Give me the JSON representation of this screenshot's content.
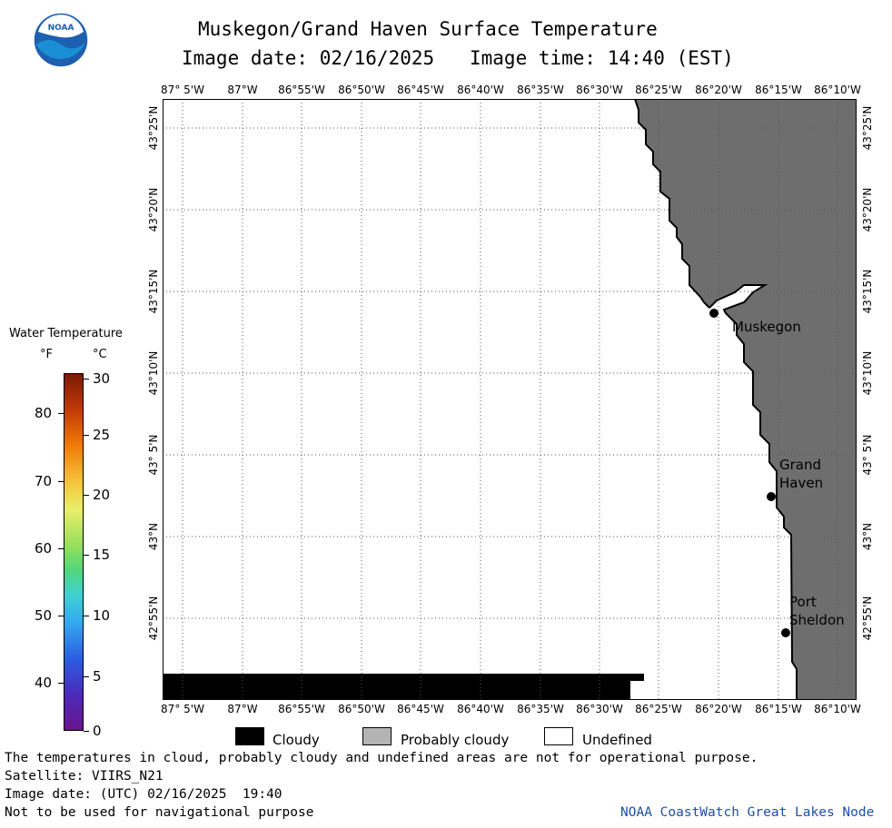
{
  "header": {
    "title": "Muskegon/Grand Haven Surface Temperature",
    "subtitle_date": "Image date: 02/16/2025",
    "subtitle_time": "Image time: 14:40 (EST)"
  },
  "logo": {
    "text": "NOAA",
    "icon": "noaa-logo"
  },
  "map": {
    "lon_labels": [
      "87° 5'W",
      "87°W",
      "86°55'W",
      "86°50'W",
      "86°45'W",
      "86°40'W",
      "86°35'W",
      "86°30'W",
      "86°25'W",
      "86°20'W",
      "86°15'W",
      "86°10'W"
    ],
    "lat_labels": [
      "43°25'N",
      "43°20'N",
      "43°15'N",
      "43°10'N",
      "43° 5'N",
      "43°N",
      "42°55'N"
    ],
    "cities": [
      {
        "name": "Muskegon"
      },
      {
        "name": "Grand Haven"
      },
      {
        "name": "Port Sheldon"
      }
    ],
    "city_lines": {
      "muskegon": [
        "Muskegon"
      ],
      "grand_haven": [
        "Grand",
        "Haven"
      ],
      "port_sheldon": [
        "Port",
        "Sheldon"
      ]
    },
    "colors": {
      "land": "#6e6e6e",
      "water_undefined": "#ffffff",
      "cloudy": "#000000",
      "grid": "#555555"
    }
  },
  "colorbar": {
    "title": "Water Temperature",
    "unit_f": "°F",
    "unit_c": "°C",
    "f_labels": [
      "80",
      "70",
      "60",
      "50",
      "40"
    ],
    "c_labels": [
      "30",
      "25",
      "20",
      "15",
      "10",
      "5",
      "0"
    ]
  },
  "legend": {
    "items": [
      {
        "label": "Cloudy",
        "color": "#000000"
      },
      {
        "label": "Probably cloudy",
        "color": "#b4b4b4"
      },
      {
        "label": "Undefined",
        "color": "#ffffff"
      }
    ]
  },
  "footer": {
    "line1": "The temperatures in cloud, probably cloudy and undefined areas are not for operational purpose.",
    "line2": "Satellite: VIIRS_N21",
    "line3": "Image date: (UTC) 02/16/2025  19:40",
    "line4": "Not to be used for navigational purpose",
    "credit": "NOAA CoastWatch Great Lakes Node"
  }
}
